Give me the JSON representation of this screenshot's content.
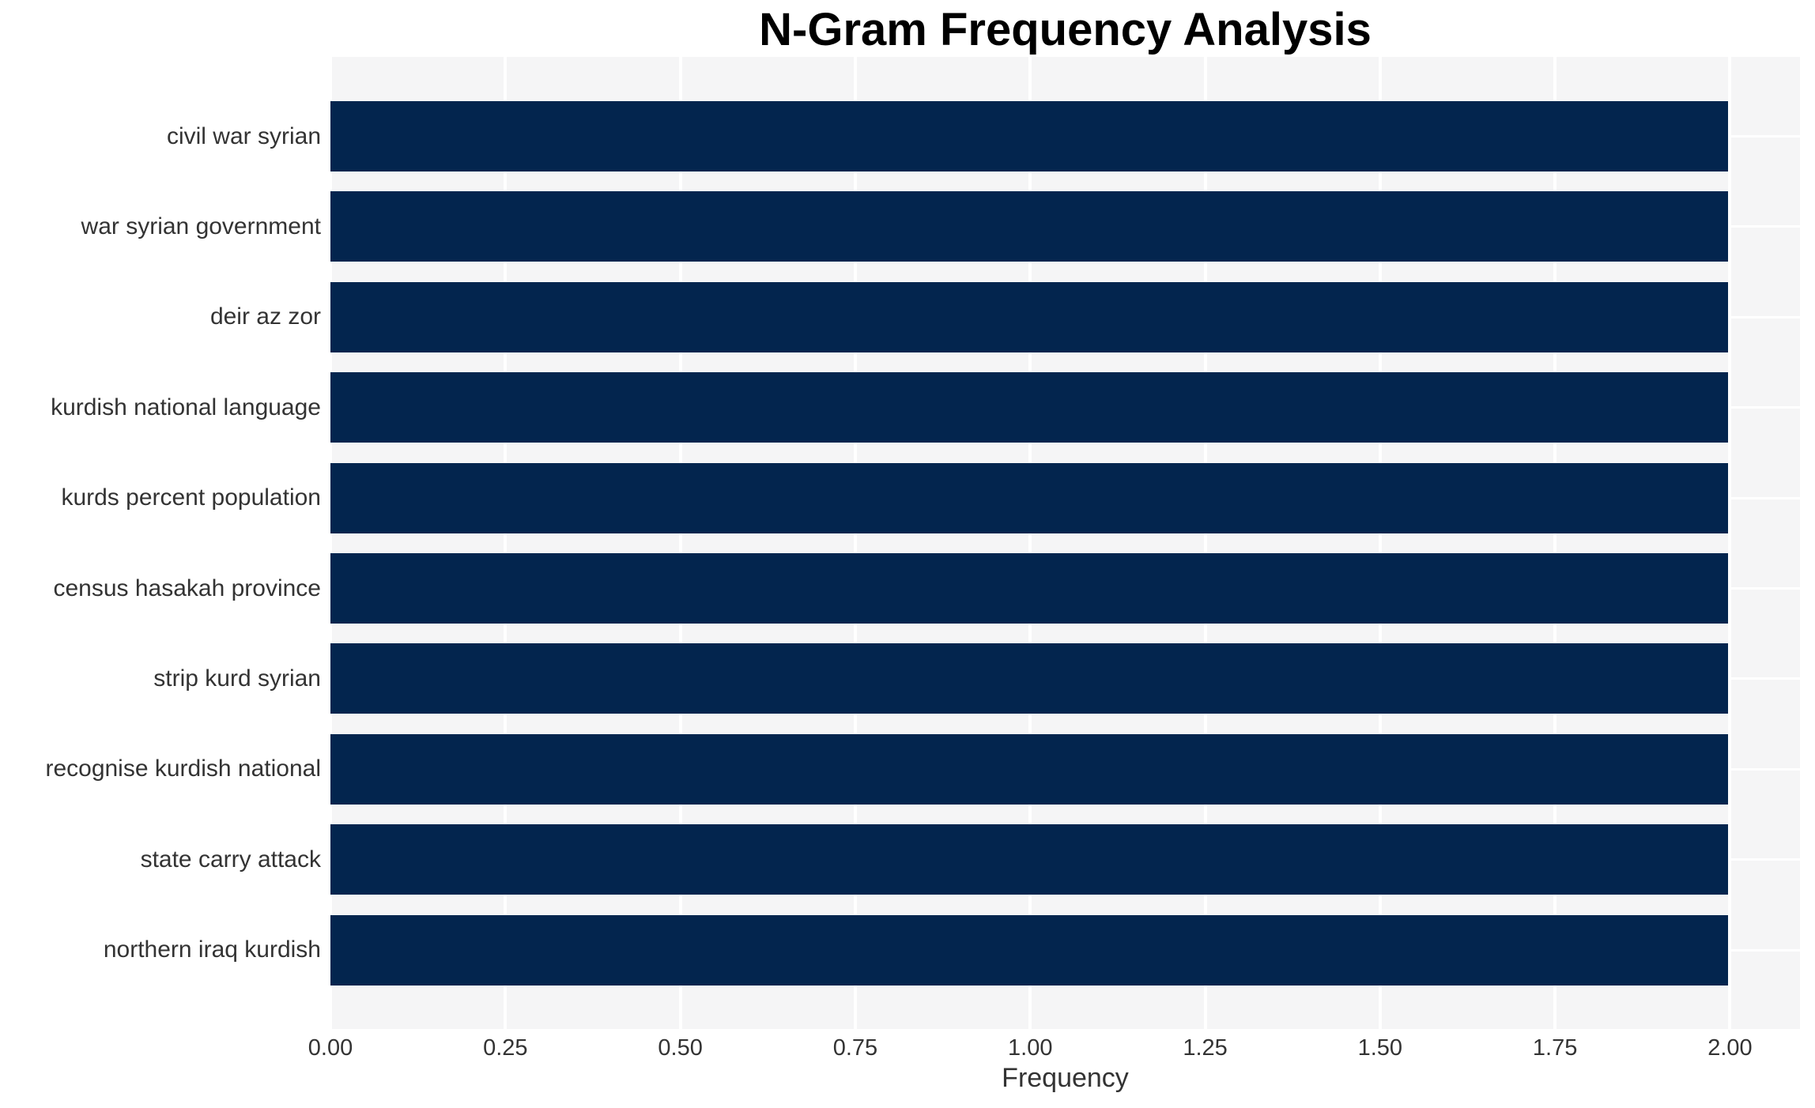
{
  "chart_data": {
    "type": "bar",
    "orientation": "horizontal",
    "title": "N-Gram Frequency Analysis",
    "xlabel": "Frequency",
    "ylabel": "",
    "categories": [
      "civil war syrian",
      "war syrian government",
      "deir az zor",
      "kurdish national language",
      "kurds percent population",
      "census hasakah province",
      "strip kurd syrian",
      "recognise kurdish national",
      "state carry attack",
      "northern iraq kurdish"
    ],
    "values": [
      2,
      2,
      2,
      2,
      2,
      2,
      2,
      2,
      2,
      2
    ],
    "xlim": [
      0,
      2.1
    ],
    "xticks": [
      0,
      0.25,
      0.5,
      0.75,
      1,
      1.25,
      1.5,
      1.75,
      2
    ],
    "xtick_labels": [
      "0.00",
      "0.25",
      "0.50",
      "0.75",
      "1.00",
      "1.25",
      "1.50",
      "1.75",
      "2.00"
    ],
    "grid": true,
    "legend": false,
    "colors": {
      "bar": "#03254e",
      "plot_background": "#f5f5f6",
      "gridline": "#ffffff",
      "tick_label": "#333333",
      "title": "#000000"
    }
  }
}
